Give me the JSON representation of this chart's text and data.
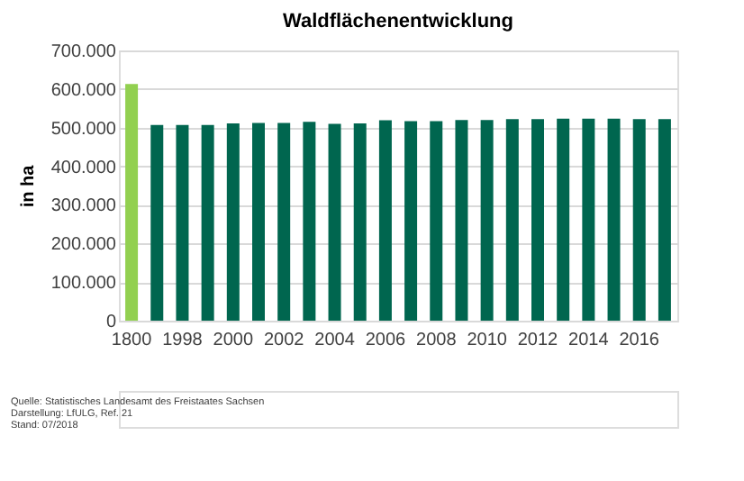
{
  "chart_data": {
    "type": "bar",
    "title": "Waldflächenentwicklung",
    "ylabel": "in ha",
    "categories": [
      "1800",
      null,
      "1998",
      null,
      "2000",
      null,
      "2002",
      null,
      "2004",
      null,
      "2006",
      null,
      "2008",
      null,
      "2010",
      null,
      "2012",
      null,
      "2014",
      null,
      "2016",
      null
    ],
    "values": [
      613000,
      507000,
      507000,
      507000,
      511000,
      512000,
      512000,
      515000,
      510000,
      511000,
      519000,
      517000,
      517000,
      520000,
      520000,
      522000,
      522000,
      523000,
      523000,
      523000,
      522000,
      522000
    ],
    "colors": [
      "#92d050",
      "#00664f",
      "#00664f",
      "#00664f",
      "#00664f",
      "#00664f",
      "#00664f",
      "#00664f",
      "#00664f",
      "#00664f",
      "#00664f",
      "#00664f",
      "#00664f",
      "#00664f",
      "#00664f",
      "#00664f",
      "#00664f",
      "#00664f",
      "#00664f",
      "#00664f",
      "#00664f",
      "#00664f"
    ],
    "ylim": [
      0,
      700000
    ],
    "yticks": [
      0,
      {
        "value": 100000,
        "label": "100.000"
      },
      {
        "value": 200000,
        "label": "200.000"
      },
      {
        "value": 300000,
        "label": "300.000"
      },
      {
        "value": 400000,
        "label": "400.000"
      },
      {
        "value": 500000,
        "label": "500.000"
      },
      {
        "value": 600000,
        "label": "600.000"
      },
      {
        "value": 700000,
        "label": "700.000"
      }
    ],
    "grid": "y",
    "annotations": [
      "Quelle: Statistisches Landesamt des Freistaates Sachsen",
      "Darstellung: LfULG, Ref. 21",
      "Stand: 07/2018"
    ]
  }
}
